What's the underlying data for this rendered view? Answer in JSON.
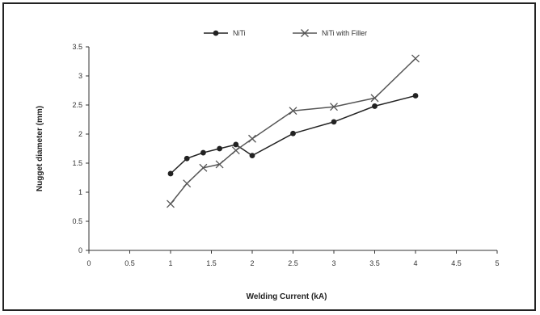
{
  "chart_data": {
    "type": "line",
    "title": "",
    "xlabel": "Welding Current (kA)",
    "ylabel": "Nugget diameter (mm)",
    "xlim": [
      0,
      5
    ],
    "ylim": [
      0,
      3.5
    ],
    "x_ticks": [
      0,
      0.5,
      1,
      1.5,
      2,
      2.5,
      3,
      3.5,
      4,
      4.5,
      5
    ],
    "x_tick_labels": [
      "0",
      "0.5",
      "1",
      "1.5",
      "2",
      "2.5",
      "3",
      "3.5",
      "4",
      "4.5",
      "5"
    ],
    "y_ticks": [
      0,
      0.5,
      1,
      1.5,
      2,
      2.5,
      3,
      3.5
    ],
    "y_tick_labels": [
      "0",
      "0.5",
      "1",
      "1.5",
      "2",
      "2.5",
      "3",
      "3.5"
    ],
    "grid": false,
    "legend_position": "top",
    "series": [
      {
        "name": "NiTi",
        "marker": "circle",
        "color": "#222222",
        "x": [
          1.0,
          1.2,
          1.4,
          1.6,
          1.8,
          2.0,
          2.5,
          3.0,
          3.5,
          4.0
        ],
        "y": [
          1.32,
          1.58,
          1.68,
          1.75,
          1.82,
          1.63,
          2.01,
          2.21,
          2.48,
          2.66
        ]
      },
      {
        "name": "NiTi with Filler",
        "marker": "x",
        "color": "#555555",
        "x": [
          1.0,
          1.2,
          1.4,
          1.6,
          1.8,
          2.0,
          2.5,
          3.0,
          3.5,
          4.0
        ],
        "y": [
          0.8,
          1.15,
          1.42,
          1.48,
          1.72,
          1.92,
          2.4,
          2.47,
          2.62,
          3.3
        ]
      }
    ]
  }
}
